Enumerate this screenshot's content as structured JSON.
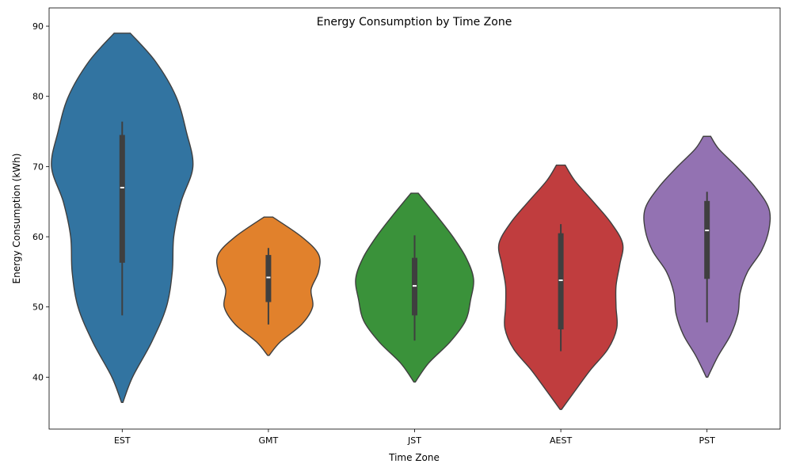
{
  "chart_data": {
    "type": "violin",
    "title": "Energy Consumption by Time Zone",
    "xlabel": "Time Zone",
    "ylabel": "Energy Consumption (kWh)",
    "ylim": [
      32.6,
      92.6
    ],
    "yticks": [
      40,
      50,
      60,
      70,
      80,
      90
    ],
    "grid": false,
    "categories": [
      "EST",
      "GMT",
      "JST",
      "AEST",
      "PST"
    ],
    "colors": [
      "#3274a1",
      "#e1812c",
      "#3a923a",
      "#c03d3e",
      "#9372b2"
    ],
    "series": [
      {
        "category": "EST",
        "median": 67.0,
        "q1": 56.3,
        "q3": 74.5,
        "whisker_low": 48.8,
        "whisker_high": 76.4,
        "density": [
          [
            36.4,
            1
          ],
          [
            40,
            14
          ],
          [
            45,
            40
          ],
          [
            50,
            60
          ],
          [
            55,
            68
          ],
          [
            60,
            70
          ],
          [
            65,
            80
          ],
          [
            70,
            96
          ],
          [
            75,
            87
          ],
          [
            80,
            73
          ],
          [
            85,
            45
          ],
          [
            89,
            11
          ]
        ]
      },
      {
        "category": "GMT",
        "median": 54.2,
        "q1": 50.7,
        "q3": 57.4,
        "whisker_low": 47.5,
        "whisker_high": 58.4,
        "density": [
          [
            43.1,
            1
          ],
          [
            45,
            16
          ],
          [
            47.5,
            45
          ],
          [
            50,
            60
          ],
          [
            52.5,
            58
          ],
          [
            55,
            68
          ],
          [
            57.5,
            68
          ],
          [
            60,
            45
          ],
          [
            62.8,
            6
          ]
        ]
      },
      {
        "category": "JST",
        "median": 53.0,
        "q1": 48.8,
        "q3": 57.0,
        "whisker_low": 45.2,
        "whisker_high": 60.2,
        "density": [
          [
            39.3,
            1
          ],
          [
            42,
            19
          ],
          [
            45,
            48
          ],
          [
            48,
            69
          ],
          [
            51,
            76
          ],
          [
            54,
            80
          ],
          [
            57,
            70
          ],
          [
            60,
            52
          ],
          [
            63,
            30
          ],
          [
            66.2,
            5
          ]
        ]
      },
      {
        "category": "AEST",
        "median": 53.8,
        "q1": 46.8,
        "q3": 60.5,
        "whisker_low": 43.7,
        "whisker_high": 61.8,
        "density": [
          [
            35.4,
            1
          ],
          [
            38,
            19
          ],
          [
            41,
            40
          ],
          [
            44,
            64
          ],
          [
            47,
            76
          ],
          [
            50,
            75
          ],
          [
            53,
            75
          ],
          [
            56,
            80
          ],
          [
            59,
            84
          ],
          [
            62,
            68
          ],
          [
            65,
            44
          ],
          [
            68,
            19
          ],
          [
            70.2,
            6
          ]
        ]
      },
      {
        "category": "PST",
        "median": 60.9,
        "q1": 54.0,
        "q3": 65.1,
        "whisker_low": 47.8,
        "whisker_high": 66.4,
        "density": [
          [
            40,
            1
          ],
          [
            43,
            15
          ],
          [
            46,
            32
          ],
          [
            49,
            42
          ],
          [
            52,
            45
          ],
          [
            55,
            55
          ],
          [
            58,
            74
          ],
          [
            61,
            84
          ],
          [
            64,
            84
          ],
          [
            67,
            66
          ],
          [
            70,
            40
          ],
          [
            72.5,
            16
          ],
          [
            74.3,
            5
          ]
        ]
      }
    ]
  }
}
